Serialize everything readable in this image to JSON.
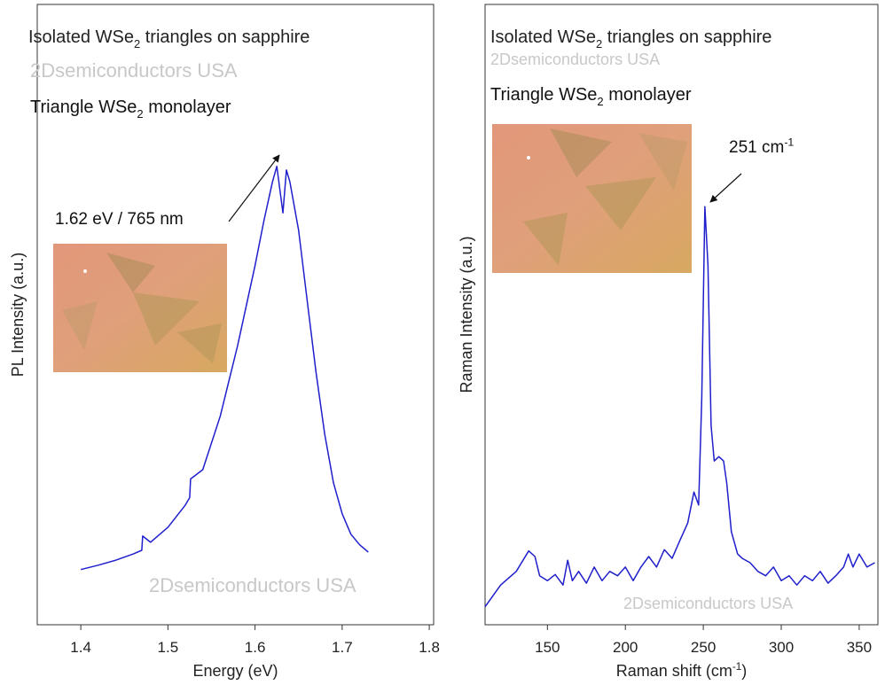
{
  "chart_data": [
    {
      "type": "line",
      "x_label": "Energy (eV)",
      "y_label": "PL Intensity (a.u.)",
      "xlim": [
        1.35,
        1.805
      ],
      "xticks": [
        1.4,
        1.5,
        1.6,
        1.7,
        1.8
      ],
      "ylim": [
        0,
        100
      ],
      "series": [
        {
          "color": "#1f1fcc",
          "x": [
            1.4,
            1.42,
            1.44,
            1.46,
            1.47,
            1.471,
            1.48,
            1.5,
            1.52,
            1.525,
            1.526,
            1.54,
            1.56,
            1.58,
            1.6,
            1.61,
            1.62,
            1.625,
            1.632,
            1.636,
            1.64,
            1.65,
            1.66,
            1.67,
            1.68,
            1.69,
            1.7,
            1.71,
            1.72,
            1.73
          ],
          "values": [
            8.9,
            9.6,
            10.4,
            11.4,
            12.0,
            14.3,
            13.3,
            15.7,
            19.3,
            20.5,
            23.5,
            25.0,
            33.6,
            45.0,
            57.9,
            65.0,
            71.4,
            73.9,
            66.4,
            73.3,
            71.4,
            63.6,
            52.1,
            40.7,
            30.7,
            22.9,
            17.9,
            14.6,
            12.9,
            11.7
          ]
        }
      ],
      "annotations": [
        {
          "parts": [
            {
              "text": "Isolated WSe"
            },
            {
              "sub": "2"
            },
            {
              "text": " triangles on sapphire"
            }
          ],
          "color": "#222222"
        },
        {
          "parts": [
            {
              "text": "2Dsemiconductors USA"
            }
          ],
          "color": "#c8c8c8"
        },
        {
          "parts": [
            {
              "text": "Triangle WSe"
            },
            {
              "sub": "2"
            },
            {
              "text": " monolayer"
            }
          ],
          "color": "#111111"
        },
        {
          "parts": [
            {
              "text": "1.62 eV / 765 nm"
            }
          ],
          "color": "#111111"
        },
        {
          "parts": [
            {
              "text": "2Dsemiconductors USA"
            }
          ],
          "color": "#c8c8c8"
        }
      ]
    },
    {
      "type": "line",
      "x_label": [
        {
          "text": "Raman shift (cm"
        },
        {
          "sup": "-1"
        },
        {
          "text": ")"
        }
      ],
      "y_label": "Raman Intensity (a.u.)",
      "xlim": [
        110,
        362
      ],
      "xticks": [
        150,
        200,
        250,
        300,
        350
      ],
      "ylim": [
        0,
        100
      ],
      "series": [
        {
          "color": "#1f1fcc",
          "x": [
            110,
            120,
            130,
            138,
            142,
            145,
            150,
            155,
            160,
            163,
            166,
            170,
            175,
            180,
            185,
            190,
            195,
            200,
            205,
            210,
            215,
            220,
            225,
            230,
            235,
            240,
            244,
            247,
            249,
            251,
            253,
            255,
            257,
            260,
            263,
            265,
            268,
            272,
            275,
            280,
            285,
            290,
            295,
            300,
            305,
            310,
            315,
            320,
            325,
            330,
            335,
            340,
            343,
            346,
            350,
            355,
            360
          ],
          "values": [
            2.9,
            6.4,
            8.6,
            11.9,
            11.0,
            7.9,
            7.1,
            8.1,
            6.4,
            10.4,
            7.1,
            8.6,
            6.7,
            9.3,
            7.1,
            8.6,
            7.9,
            9.3,
            7.1,
            9.3,
            11.0,
            9.3,
            12.1,
            10.7,
            13.6,
            16.4,
            21.4,
            19.3,
            36.4,
            67.4,
            57.9,
            32.1,
            26.4,
            27.1,
            26.4,
            22.9,
            15.0,
            11.4,
            10.7,
            10.0,
            8.6,
            7.9,
            9.3,
            7.1,
            7.9,
            6.4,
            7.9,
            7.1,
            8.6,
            6.7,
            7.9,
            9.3,
            11.4,
            9.3,
            11.4,
            9.3,
            10.0
          ]
        }
      ],
      "annotations": [
        {
          "parts": [
            {
              "text": "Isolated WSe"
            },
            {
              "sub": "2"
            },
            {
              "text": " triangles on sapphire"
            }
          ],
          "color": "#222222"
        },
        {
          "parts": [
            {
              "text": "2Dsemiconductors USA"
            }
          ],
          "color": "#c8c8c8"
        },
        {
          "parts": [
            {
              "text": "Triangle WSe"
            },
            {
              "sub": "2"
            },
            {
              "text": " monolayer"
            }
          ],
          "color": "#111111"
        },
        {
          "parts": [
            {
              "text": "251 cm"
            },
            {
              "sup": "-1"
            }
          ],
          "color": "#111111"
        },
        {
          "parts": [
            {
              "text": "2Dsemiconductors USA"
            }
          ],
          "color": "#c8c8c8"
        }
      ]
    }
  ]
}
